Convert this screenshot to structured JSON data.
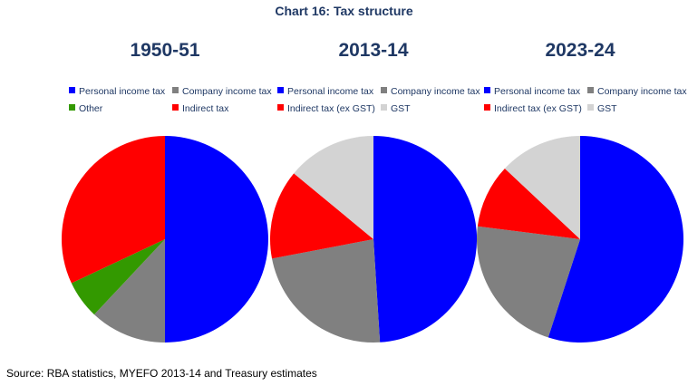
{
  "title": "Chart 16: Tax structure",
  "source": "Source: RBA statistics, MYEFO 2013-14 and Treasury estimates",
  "chart_data": [
    {
      "type": "pie",
      "title": "1950-51",
      "legend": [
        {
          "label": "Personal income tax",
          "color": "#0000ff"
        },
        {
          "label": "Company income tax",
          "color": "#808080"
        },
        {
          "label": "Other",
          "color": "#339900"
        },
        {
          "label": "Indirect tax",
          "color": "#ff0000"
        }
      ],
      "slices": [
        {
          "label": "Personal income tax",
          "value": 50,
          "color": "#0000ff"
        },
        {
          "label": "Company income tax",
          "value": 12,
          "color": "#808080"
        },
        {
          "label": "Other",
          "value": 6,
          "color": "#339900"
        },
        {
          "label": "Indirect tax",
          "value": 32,
          "color": "#ff0000"
        }
      ]
    },
    {
      "type": "pie",
      "title": "2013-14",
      "legend": [
        {
          "label": "Personal income tax",
          "color": "#0000ff"
        },
        {
          "label": "Company income tax",
          "color": "#808080"
        },
        {
          "label": "Indirect tax (ex GST)",
          "color": "#ff0000"
        },
        {
          "label": "GST",
          "color": "#d3d3d3"
        }
      ],
      "slices": [
        {
          "label": "Personal income tax",
          "value": 49,
          "color": "#0000ff"
        },
        {
          "label": "Company income tax",
          "value": 23,
          "color": "#808080"
        },
        {
          "label": "Indirect tax (ex GST)",
          "value": 14,
          "color": "#ff0000"
        },
        {
          "label": "GST",
          "value": 14,
          "color": "#d3d3d3"
        }
      ]
    },
    {
      "type": "pie",
      "title": "2023-24",
      "legend": [
        {
          "label": "Personal income tax",
          "color": "#0000ff"
        },
        {
          "label": "Company income tax",
          "color": "#808080"
        },
        {
          "label": "Indirect tax (ex GST)",
          "color": "#ff0000"
        },
        {
          "label": "GST",
          "color": "#d3d3d3"
        }
      ],
      "slices": [
        {
          "label": "Personal income tax",
          "value": 55,
          "color": "#0000ff"
        },
        {
          "label": "Company income tax",
          "value": 22,
          "color": "#808080"
        },
        {
          "label": "Indirect tax (ex GST)",
          "value": 10,
          "color": "#ff0000"
        },
        {
          "label": "GST",
          "value": 13,
          "color": "#d3d3d3"
        }
      ]
    }
  ]
}
